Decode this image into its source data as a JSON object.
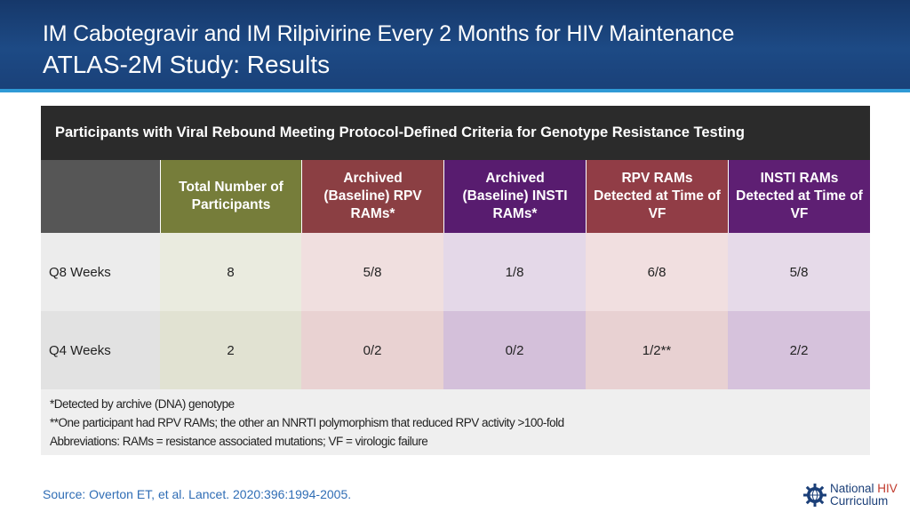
{
  "slide": {
    "title_line1": "IM Cabotegravir and IM Rilpivirine Every 2 Months for HIV Maintenance",
    "title_line2": "ATLAS-2M Study: Results"
  },
  "table": {
    "banner": "Participants with Viral Rebound Meeting Protocol-Defined Criteria for Genotype Resistance Testing",
    "headers": [
      "Total Number of Participants",
      "Archived (Baseline) RPV RAMs*",
      "Archived (Baseline) INSTI RAMs*",
      "RPV RAMs Detected at Time of VF",
      "INSTI RAMs Detected at Time of VF"
    ],
    "rows": [
      {
        "label": "Q8 Weeks",
        "values": [
          "8",
          "5/8",
          "1/8",
          "6/8",
          "5/8"
        ]
      },
      {
        "label": "Q4 Weeks",
        "values": [
          "2",
          "0/2",
          "0/2",
          "1/2**",
          "2/2"
        ]
      }
    ],
    "header_colors": [
      "#767d3a",
      "#8b3f43",
      "#581c6f",
      "#913d46",
      "#5e1f73"
    ]
  },
  "footnotes": [
    "*Detected by archive (DNA) genotype",
    "**One participant had RPV RAMs; the other an NNRTI polymorphism that reduced RPV activity >100-fold",
    "Abbreviations: RAMs = resistance associated mutations; VF = virologic failure"
  ],
  "source": "Source: Overton ET, et al. Lancet. 2020:396:1994-2005.",
  "logo": {
    "line1": "National",
    "line1_accent": "HIV",
    "line2": "Curriculum",
    "icon": "gear-globe-icon"
  }
}
